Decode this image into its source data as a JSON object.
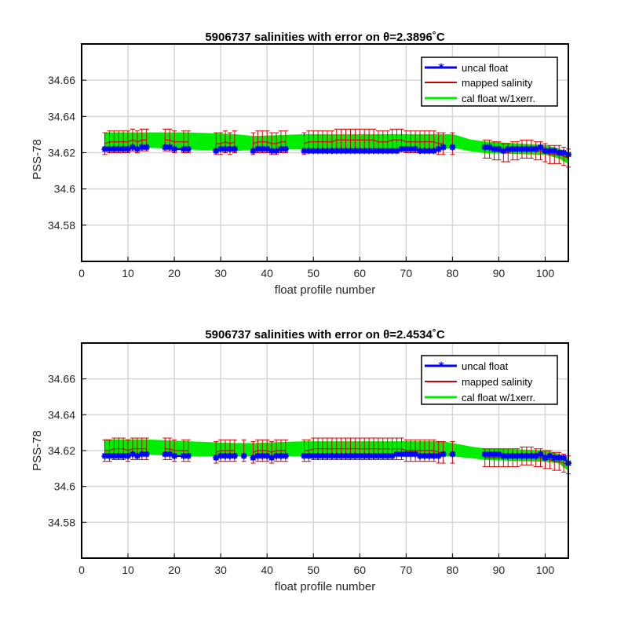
{
  "chart_data": [
    {
      "type": "line",
      "title": "5906737 salinities with error on θ=2.3896˚C",
      "xlabel": "float profile number",
      "ylabel": "PSS-78",
      "xlim": [
        0,
        105
      ],
      "ylim": [
        34.56,
        34.68
      ],
      "xticks": [
        0,
        10,
        20,
        30,
        40,
        50,
        60,
        70,
        80,
        90,
        100
      ],
      "yticks": [
        34.58,
        34.6,
        34.62,
        34.64,
        34.66
      ],
      "grid": true,
      "legend": {
        "placement": "top-right",
        "entries": [
          "uncal float",
          "mapped salinity",
          "cal float w/1xerr."
        ]
      },
      "colors": {
        "uncal": "#0000ff",
        "mapped": "#d40000",
        "cal": "#00ee00"
      },
      "segments": [
        {
          "x": [
            5,
            6,
            7,
            8,
            9,
            10,
            11,
            12,
            13,
            14
          ],
          "uncal": [
            34.622,
            34.622,
            34.622,
            34.622,
            34.622,
            34.622,
            34.623,
            34.622,
            34.623,
            34.623
          ],
          "mapped": [
            34.625,
            34.626,
            34.626,
            34.626,
            34.626,
            34.626,
            34.627,
            34.626,
            34.627,
            34.627
          ],
          "cal_lo": 34.623,
          "cal_hi": 34.631,
          "error": 0.006
        },
        {
          "x": [
            18,
            19,
            20,
            22,
            23
          ],
          "uncal": [
            34.623,
            34.623,
            34.622,
            34.622,
            34.622
          ],
          "mapped": [
            34.627,
            34.627,
            34.626,
            34.626,
            34.626
          ],
          "cal_lo": 34.623,
          "cal_hi": 34.631,
          "error": 0.006
        },
        {
          "x": [
            29,
            30,
            31,
            32,
            33
          ],
          "uncal": [
            34.621,
            34.622,
            34.622,
            34.622,
            34.622
          ],
          "mapped": [
            34.625,
            34.625,
            34.626,
            34.625,
            34.626
          ],
          "cal_lo": 34.622,
          "cal_hi": 34.63,
          "error": 0.006
        },
        {
          "x": [
            37,
            38,
            39,
            40,
            41,
            42,
            43,
            44
          ],
          "uncal": [
            34.621,
            34.622,
            34.622,
            34.622,
            34.621,
            34.621,
            34.622,
            34.622
          ],
          "mapped": [
            34.625,
            34.626,
            34.626,
            34.626,
            34.625,
            34.625,
            34.626,
            34.626
          ],
          "cal_lo": 34.622,
          "cal_hi": 34.63,
          "error": 0.006
        },
        {
          "x": [
            48,
            49,
            50,
            51,
            52,
            53,
            54,
            55,
            56,
            57,
            58,
            59,
            60,
            61,
            62,
            63,
            64,
            65,
            66,
            67,
            68,
            69,
            70,
            71,
            72,
            73,
            74,
            75,
            76,
            77,
            78
          ],
          "uncal": [
            34.621,
            34.621,
            34.621,
            34.621,
            34.621,
            34.621,
            34.621,
            34.621,
            34.621,
            34.621,
            34.621,
            34.621,
            34.621,
            34.621,
            34.621,
            34.621,
            34.621,
            34.621,
            34.621,
            34.621,
            34.621,
            34.622,
            34.622,
            34.622,
            34.622,
            34.621,
            34.621,
            34.621,
            34.621,
            34.622,
            34.623
          ],
          "mapped": [
            34.625,
            34.626,
            34.626,
            34.626,
            34.626,
            34.626,
            34.626,
            34.627,
            34.627,
            34.627,
            34.627,
            34.627,
            34.627,
            34.627,
            34.627,
            34.627,
            34.626,
            34.626,
            34.626,
            34.627,
            34.627,
            34.627,
            34.626,
            34.626,
            34.626,
            34.626,
            34.626,
            34.626,
            34.626,
            34.625,
            34.625
          ],
          "cal_lo": 34.622,
          "cal_hi": 34.63,
          "error": 0.006
        },
        {
          "x": [
            80
          ],
          "uncal": [
            34.623
          ],
          "mapped": [
            34.625
          ],
          "cal_lo": 34.623,
          "cal_hi": 34.63,
          "error": 0.006
        },
        {
          "x": [
            87,
            88,
            89,
            90,
            91,
            92,
            93,
            94,
            95,
            96,
            97,
            98,
            99,
            100,
            101,
            102,
            103,
            104,
            105
          ],
          "uncal": [
            34.623,
            34.623,
            34.622,
            34.622,
            34.621,
            34.622,
            34.622,
            34.622,
            34.622,
            34.622,
            34.622,
            34.622,
            34.623,
            34.621,
            34.621,
            34.621,
            34.62,
            34.62,
            34.619
          ],
          "mapped": [
            34.622,
            34.622,
            34.621,
            34.621,
            34.62,
            34.62,
            34.621,
            34.621,
            34.622,
            34.622,
            34.622,
            34.621,
            34.621,
            34.62,
            34.619,
            34.619,
            34.619,
            34.618,
            34.617
          ],
          "cal_lo": 34.619,
          "cal_hi": 34.625,
          "error": 0.005
        }
      ],
      "cal_band": [
        {
          "x": 5,
          "lo": 34.623,
          "hi": 34.631
        },
        {
          "x": 14,
          "lo": 34.623,
          "hi": 34.631
        },
        {
          "x": 23,
          "lo": 34.622,
          "hi": 34.631
        },
        {
          "x": 33,
          "lo": 34.621,
          "hi": 34.63
        },
        {
          "x": 37,
          "lo": 34.622,
          "hi": 34.629
        },
        {
          "x": 48,
          "lo": 34.622,
          "hi": 34.63
        },
        {
          "x": 78,
          "lo": 34.622,
          "hi": 34.63
        },
        {
          "x": 80,
          "lo": 34.623,
          "hi": 34.63
        },
        {
          "x": 84,
          "lo": 34.621,
          "hi": 34.627
        },
        {
          "x": 87,
          "lo": 34.62,
          "hi": 34.626
        },
        {
          "x": 100,
          "lo": 34.619,
          "hi": 34.624
        },
        {
          "x": 103,
          "lo": 34.617,
          "hi": 34.622
        },
        {
          "x": 105,
          "lo": 34.614,
          "hi": 34.62
        }
      ]
    },
    {
      "type": "line",
      "title": "5906737 salinities with error on θ=2.4534˚C",
      "xlabel": "float profile number",
      "ylabel": "PSS-78",
      "xlim": [
        0,
        105
      ],
      "ylim": [
        34.56,
        34.68
      ],
      "xticks": [
        0,
        10,
        20,
        30,
        40,
        50,
        60,
        70,
        80,
        90,
        100
      ],
      "yticks": [
        34.58,
        34.6,
        34.62,
        34.64,
        34.66
      ],
      "grid": true,
      "legend": {
        "placement": "top-right",
        "entries": [
          "uncal float",
          "mapped salinity",
          "cal float w/1xerr."
        ]
      },
      "colors": {
        "uncal": "#0000ff",
        "mapped": "#d40000",
        "cal": "#00ee00"
      },
      "segments": [
        {
          "x": [
            5,
            6,
            7,
            8,
            9,
            10,
            11,
            12,
            13,
            14
          ],
          "uncal": [
            34.617,
            34.617,
            34.617,
            34.617,
            34.617,
            34.617,
            34.618,
            34.617,
            34.618,
            34.618
          ],
          "mapped": [
            34.62,
            34.62,
            34.621,
            34.621,
            34.621,
            34.62,
            34.621,
            34.621,
            34.621,
            34.621
          ],
          "cal_lo": 34.618,
          "cal_hi": 34.626,
          "error": 0.006
        },
        {
          "x": [
            18,
            19,
            20,
            22,
            23
          ],
          "uncal": [
            34.618,
            34.618,
            34.617,
            34.617,
            34.617
          ],
          "mapped": [
            34.621,
            34.621,
            34.62,
            34.62,
            34.62
          ],
          "cal_lo": 34.617,
          "cal_hi": 34.625,
          "error": 0.006
        },
        {
          "x": [
            29,
            30,
            31,
            32,
            33
          ],
          "uncal": [
            34.616,
            34.617,
            34.617,
            34.617,
            34.617
          ],
          "mapped": [
            34.619,
            34.62,
            34.62,
            34.62,
            34.62
          ],
          "cal_lo": 34.617,
          "cal_hi": 34.624,
          "error": 0.006
        },
        {
          "x": [
            35
          ],
          "uncal": [
            34.617
          ],
          "mapped": [
            34.62
          ],
          "cal_lo": 34.617,
          "cal_hi": 34.624,
          "error": 0.006
        },
        {
          "x": [
            37,
            38,
            39,
            40,
            41,
            42,
            43,
            44
          ],
          "uncal": [
            34.616,
            34.617,
            34.617,
            34.617,
            34.616,
            34.617,
            34.617,
            34.617
          ],
          "mapped": [
            34.619,
            34.62,
            34.62,
            34.62,
            34.619,
            34.62,
            34.62,
            34.62
          ],
          "cal_lo": 34.617,
          "cal_hi": 34.624,
          "error": 0.006
        },
        {
          "x": [
            48,
            49,
            50,
            51,
            52,
            53,
            54,
            55,
            56,
            57,
            58,
            59,
            60,
            61,
            62,
            63,
            64,
            65,
            66,
            67,
            68,
            69,
            70,
            71,
            72,
            73,
            74,
            75,
            76,
            77,
            78
          ],
          "uncal": [
            34.617,
            34.617,
            34.617,
            34.617,
            34.617,
            34.617,
            34.617,
            34.617,
            34.617,
            34.617,
            34.617,
            34.617,
            34.617,
            34.617,
            34.617,
            34.617,
            34.617,
            34.617,
            34.617,
            34.617,
            34.618,
            34.618,
            34.618,
            34.618,
            34.618,
            34.617,
            34.617,
            34.617,
            34.617,
            34.617,
            34.618
          ],
          "mapped": [
            34.62,
            34.62,
            34.621,
            34.621,
            34.621,
            34.621,
            34.621,
            34.621,
            34.621,
            34.621,
            34.621,
            34.621,
            34.621,
            34.621,
            34.621,
            34.621,
            34.621,
            34.621,
            34.621,
            34.621,
            34.621,
            34.621,
            34.62,
            34.62,
            34.62,
            34.62,
            34.62,
            34.62,
            34.62,
            34.619,
            34.619
          ],
          "cal_lo": 34.617,
          "cal_hi": 34.625,
          "error": 0.006
        },
        {
          "x": [
            80
          ],
          "uncal": [
            34.618
          ],
          "mapped": [
            34.619
          ],
          "cal_lo": 34.617,
          "cal_hi": 34.624,
          "error": 0.006
        },
        {
          "x": [
            87,
            88,
            89,
            90,
            91,
            92,
            93,
            94,
            95,
            96,
            97,
            98,
            99,
            100,
            101,
            102,
            103,
            104,
            105
          ],
          "uncal": [
            34.618,
            34.618,
            34.618,
            34.618,
            34.617,
            34.617,
            34.617,
            34.617,
            34.617,
            34.617,
            34.617,
            34.617,
            34.618,
            34.616,
            34.617,
            34.616,
            34.616,
            34.616,
            34.613
          ],
          "mapped": [
            34.616,
            34.616,
            34.616,
            34.616,
            34.616,
            34.616,
            34.616,
            34.616,
            34.617,
            34.617,
            34.617,
            34.616,
            34.616,
            34.615,
            34.615,
            34.614,
            34.614,
            34.613,
            34.612
          ],
          "cal_lo": 34.614,
          "cal_hi": 34.62,
          "error": 0.005
        }
      ],
      "cal_band": [
        {
          "x": 5,
          "lo": 34.618,
          "hi": 34.626
        },
        {
          "x": 14,
          "lo": 34.618,
          "hi": 34.626
        },
        {
          "x": 23,
          "lo": 34.617,
          "hi": 34.625
        },
        {
          "x": 33,
          "lo": 34.617,
          "hi": 34.624
        },
        {
          "x": 37,
          "lo": 34.617,
          "hi": 34.624
        },
        {
          "x": 48,
          "lo": 34.617,
          "hi": 34.625
        },
        {
          "x": 78,
          "lo": 34.617,
          "hi": 34.625
        },
        {
          "x": 80,
          "lo": 34.617,
          "hi": 34.624
        },
        {
          "x": 84,
          "lo": 34.616,
          "hi": 34.622
        },
        {
          "x": 87,
          "lo": 34.615,
          "hi": 34.621
        },
        {
          "x": 100,
          "lo": 34.614,
          "hi": 34.62
        },
        {
          "x": 103,
          "lo": 34.613,
          "hi": 34.618
        },
        {
          "x": 105,
          "lo": 34.609,
          "hi": 34.615
        }
      ]
    }
  ]
}
